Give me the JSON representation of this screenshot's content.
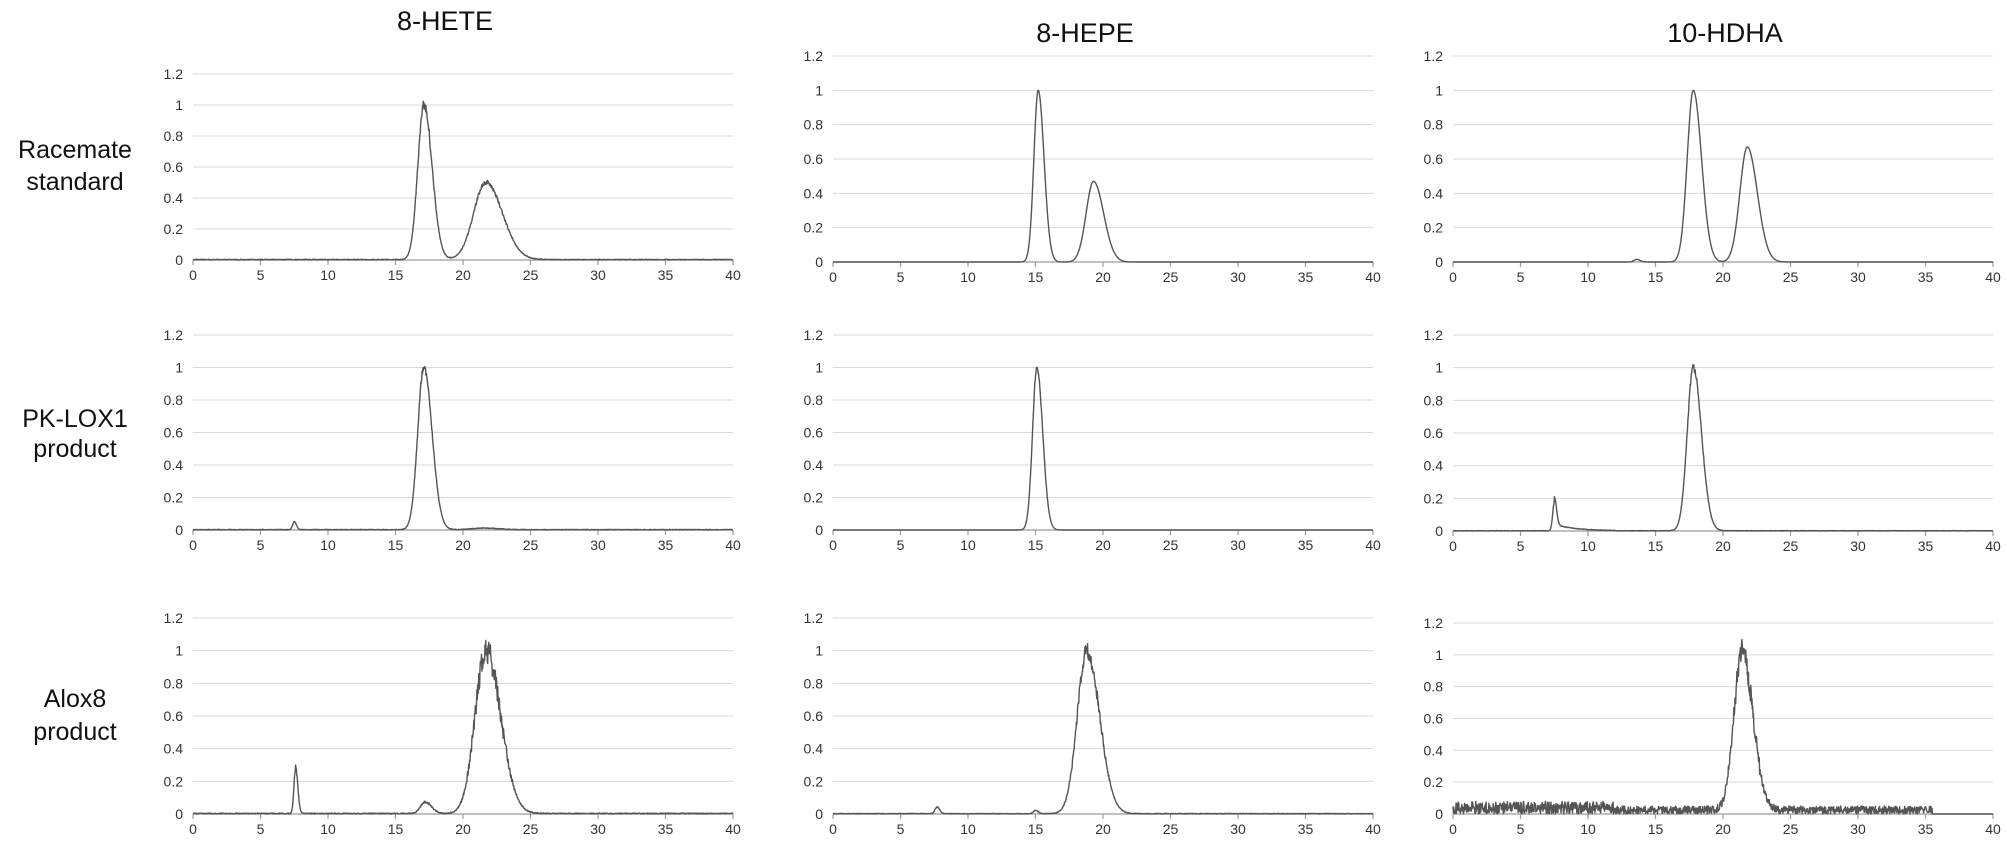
{
  "row_labels": [
    [
      "Racemate",
      "standard"
    ],
    [
      "PK-LOX1",
      "product"
    ],
    [
      "Alox8",
      "product"
    ]
  ],
  "column_titles": [
    "8-HETE",
    "8-HEPE",
    "10-HDHA"
  ],
  "chart_data": [
    {
      "type": "line",
      "row": 0,
      "col": 0,
      "title": "8-HETE",
      "xlim": [
        0,
        40
      ],
      "ylim": [
        0,
        1.2
      ],
      "xticks": [
        0,
        5,
        10,
        15,
        20,
        25,
        30,
        35,
        40
      ],
      "yticks": [
        0,
        0.2,
        0.4,
        0.6,
        0.8,
        1,
        1.2
      ],
      "grid": true,
      "peaks": [
        {
          "x": 17.1,
          "height": 1.0,
          "width": 0.45
        },
        {
          "x": 21.7,
          "height": 0.5,
          "width": 0.9
        }
      ],
      "noise": 0.03,
      "baseline_noise": 0.005
    },
    {
      "type": "line",
      "row": 0,
      "col": 1,
      "title": "8-HEPE",
      "xlim": [
        0,
        40
      ],
      "ylim": [
        0,
        1.2
      ],
      "xticks": [
        0,
        5,
        10,
        15,
        20,
        25,
        30,
        35,
        40
      ],
      "yticks": [
        0,
        0.2,
        0.4,
        0.6,
        0.8,
        1,
        1.2
      ],
      "grid": true,
      "peaks": [
        {
          "x": 15.2,
          "height": 1.0,
          "width": 0.32
        },
        {
          "x": 19.3,
          "height": 0.47,
          "width": 0.55
        }
      ],
      "noise": 0,
      "baseline_noise": 0
    },
    {
      "type": "line",
      "row": 0,
      "col": 2,
      "title": "10-HDHA",
      "xlim": [
        0,
        40
      ],
      "ylim": [
        0,
        1.2
      ],
      "xticks": [
        0,
        5,
        10,
        15,
        20,
        25,
        30,
        35,
        40
      ],
      "yticks": [
        0,
        0.2,
        0.4,
        0.6,
        0.8,
        1,
        1.2
      ],
      "grid": true,
      "peaks": [
        {
          "x": 13.6,
          "height": 0.015,
          "width": 0.2
        },
        {
          "x": 17.8,
          "height": 1.0,
          "width": 0.45
        },
        {
          "x": 21.8,
          "height": 0.67,
          "width": 0.55
        }
      ],
      "noise": 0,
      "baseline_noise": 0
    },
    {
      "type": "line",
      "row": 1,
      "col": 0,
      "xlim": [
        0,
        40
      ],
      "ylim": [
        0,
        1.2
      ],
      "xticks": [
        0,
        5,
        10,
        15,
        20,
        25,
        30,
        35,
        40
      ],
      "yticks": [
        0,
        0.2,
        0.4,
        0.6,
        0.8,
        1,
        1.2
      ],
      "grid": true,
      "peaks": [
        {
          "x": 7.5,
          "height": 0.05,
          "width": 0.12
        },
        {
          "x": 17.1,
          "height": 1.0,
          "width": 0.45
        },
        {
          "x": 21.5,
          "height": 0.01,
          "width": 0.8
        }
      ],
      "noise": 0.02,
      "baseline_noise": 0.004
    },
    {
      "type": "line",
      "row": 1,
      "col": 1,
      "xlim": [
        0,
        40
      ],
      "ylim": [
        0,
        1.2
      ],
      "xticks": [
        0,
        5,
        10,
        15,
        20,
        25,
        30,
        35,
        40
      ],
      "yticks": [
        0,
        0.2,
        0.4,
        0.6,
        0.8,
        1,
        1.2
      ],
      "grid": true,
      "peaks": [
        {
          "x": 15.1,
          "height": 1.0,
          "width": 0.32
        }
      ],
      "noise": 0.015,
      "baseline_noise": 0
    },
    {
      "type": "line",
      "row": 1,
      "col": 2,
      "xlim": [
        0,
        40
      ],
      "ylim": [
        0,
        1.2
      ],
      "xticks": [
        0,
        5,
        10,
        15,
        20,
        25,
        30,
        35,
        40
      ],
      "yticks": [
        0,
        0.2,
        0.4,
        0.6,
        0.8,
        1,
        1.2
      ],
      "grid": true,
      "peaks": [
        {
          "x": 7.5,
          "height": 0.17,
          "width": 0.12
        },
        {
          "x": 17.8,
          "height": 1.0,
          "width": 0.45
        }
      ],
      "tail": {
        "start": 7.5,
        "end": 12,
        "height": 0.04
      },
      "noise": 0.02,
      "baseline_noise": 0.003
    },
    {
      "type": "line",
      "row": 2,
      "col": 0,
      "xlim": [
        0,
        40
      ],
      "ylim": [
        0,
        1.2
      ],
      "xticks": [
        0,
        5,
        10,
        15,
        20,
        25,
        30,
        35,
        40
      ],
      "yticks": [
        0,
        0.2,
        0.4,
        0.6,
        0.8,
        1,
        1.2
      ],
      "grid": true,
      "peaks": [
        {
          "x": 7.6,
          "height": 0.28,
          "width": 0.12
        },
        {
          "x": 17.2,
          "height": 0.07,
          "width": 0.35
        },
        {
          "x": 21.7,
          "height": 1.0,
          "width": 0.8
        }
      ],
      "noise": 0.08,
      "baseline_noise": 0.006
    },
    {
      "type": "line",
      "row": 2,
      "col": 1,
      "xlim": [
        0,
        40
      ],
      "ylim": [
        0,
        1.2
      ],
      "xticks": [
        0,
        5,
        10,
        15,
        20,
        25,
        30,
        35,
        40
      ],
      "yticks": [
        0,
        0.2,
        0.4,
        0.6,
        0.8,
        1,
        1.2
      ],
      "grid": true,
      "peaks": [
        {
          "x": 7.7,
          "height": 0.04,
          "width": 0.15
        },
        {
          "x": 15.0,
          "height": 0.02,
          "width": 0.15
        },
        {
          "x": 18.8,
          "height": 1.0,
          "width": 0.7
        }
      ],
      "noise": 0.05,
      "baseline_noise": 0.004
    },
    {
      "type": "line",
      "row": 2,
      "col": 2,
      "xlim": [
        0,
        40
      ],
      "ylim": [
        0,
        1.2
      ],
      "xticks": [
        0,
        5,
        10,
        15,
        20,
        25,
        30,
        35,
        40
      ],
      "yticks": [
        0,
        0.2,
        0.4,
        0.6,
        0.8,
        1,
        1.2
      ],
      "grid": true,
      "peaks": [
        {
          "x": 21.4,
          "height": 1.0,
          "width": 0.6
        }
      ],
      "noise": 0.08,
      "baseline_noise": 0.05
    }
  ]
}
